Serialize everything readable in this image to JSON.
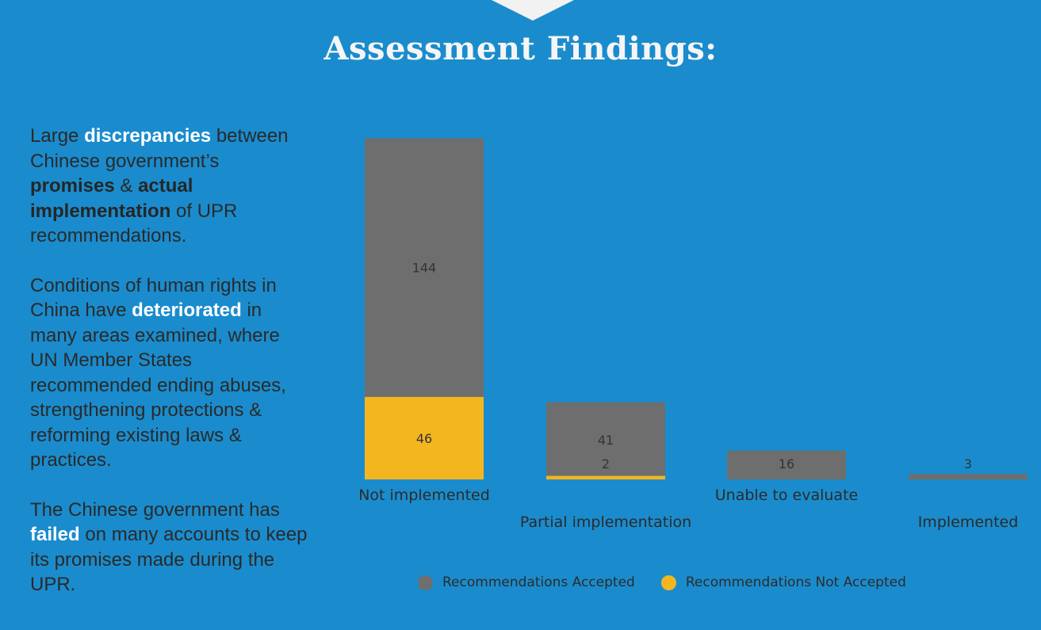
{
  "slide": {
    "title": "Assessment Findings:",
    "paragraphs": [
      [
        {
          "text": "Large ",
          "style": "normal"
        },
        {
          "text": "discrepancies",
          "style": "white"
        },
        {
          "text": " between Chinese government’s ",
          "style": "normal"
        },
        {
          "text": "promises",
          "style": "dark"
        },
        {
          "text": " & ",
          "style": "normal"
        },
        {
          "text": "actual implementation",
          "style": "dark"
        },
        {
          "text": " of UPR recommendations.",
          "style": "normal"
        }
      ],
      [
        {
          "text": "Conditions of human rights in China have ",
          "style": "normal"
        },
        {
          "text": "deteriorated",
          "style": "white"
        },
        {
          "text": " in many areas examined, where UN Member States recommended ending abuses, strengthening protections & reforming existing laws & practices.",
          "style": "normal"
        }
      ],
      [
        {
          "text": "The Chinese government has ",
          "style": "normal"
        },
        {
          "text": "failed",
          "style": "white"
        },
        {
          "text": " on many accounts to keep its promises made during the UPR.",
          "style": "normal"
        }
      ]
    ]
  },
  "chart_data": {
    "type": "bar",
    "stacked": true,
    "categories": [
      "Not implemented",
      "Partial implementation",
      "Unable to evaluate",
      "Implemented"
    ],
    "series": [
      {
        "name": "Recommendations Not Accepted",
        "values": [
          46,
          2,
          0,
          0
        ],
        "color": "#f4b61f"
      },
      {
        "name": "Recommendations Accepted",
        "values": [
          144,
          41,
          16,
          3
        ],
        "color": "#6e6e6e"
      }
    ],
    "data_labels": [
      [
        "46",
        "2",
        "",
        ""
      ],
      [
        "144",
        "41",
        "16",
        "3"
      ]
    ],
    "legend_position": "bottom",
    "grid": false
  }
}
